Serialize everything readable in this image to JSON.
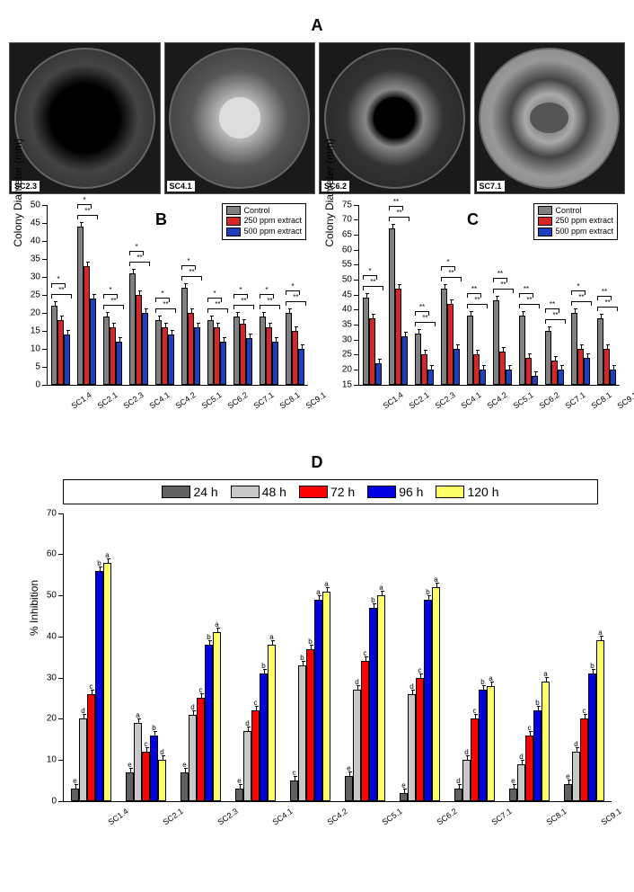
{
  "panelA": {
    "label": "A",
    "dishes": [
      {
        "id": "SC2.3",
        "outer_bg": "radial-gradient(circle, #000 0%, #000 35%, #444 55%, #222 100%)",
        "inner": {
          "w": "48%",
          "h": "48%",
          "bg": "#000"
        }
      },
      {
        "id": "SC4.1",
        "outer_bg": "radial-gradient(circle, #ddd 0%, #bbb 20%, #555 50%, #333 100%)",
        "inner": {
          "w": "30%",
          "h": "30%",
          "bg": "#ddd"
        }
      },
      {
        "id": "SC6.2",
        "outer_bg": "radial-gradient(circle, #000 0%, #000 20%, #888 30%, #333 50%, #222 100%)",
        "inner": {
          "w": "30%",
          "h": "30%",
          "bg": "#000"
        }
      },
      {
        "id": "SC7.1",
        "outer_bg": "radial-gradient(circle, #555 0%, #aaa 25%, #444 40%, #999 60%, #777 100%)",
        "inner": {
          "w": "28%",
          "h": "22%",
          "bg": "#555"
        }
      }
    ]
  },
  "panelB": {
    "label": "B",
    "ylabel": "Colony Diameter (mm)",
    "ylim": [
      0,
      50
    ],
    "ytick_step": 5,
    "legend": [
      {
        "label": "Control",
        "color": "#808080"
      },
      {
        "label": "250 ppm extract",
        "color": "#d62728"
      },
      {
        "label": "500 ppm extract",
        "color": "#1f3fbf"
      }
    ],
    "categories": [
      "SC1.4",
      "SC2.1",
      "SC2.3",
      "SC4.1",
      "SC4.2",
      "SC5.1",
      "SC6.2",
      "SC7.1",
      "SC8.1",
      "SC9.1"
    ],
    "series": [
      [
        22,
        44,
        19,
        31,
        18,
        27,
        18,
        19,
        19,
        20
      ],
      [
        18,
        33,
        16,
        25,
        16,
        20,
        16,
        17,
        16,
        15
      ],
      [
        14,
        24,
        12,
        20,
        14,
        16,
        12,
        13,
        12,
        10
      ]
    ],
    "sig": [
      [
        "**",
        "*"
      ],
      [
        "**",
        "*"
      ],
      [
        "**",
        "*"
      ],
      [
        "**",
        "*"
      ],
      [
        "**",
        "*"
      ],
      [
        "**",
        "*"
      ],
      [
        "**",
        "*"
      ],
      [
        "**",
        "*"
      ],
      [
        "**",
        "*"
      ],
      [
        "**",
        "*"
      ]
    ]
  },
  "panelC": {
    "label": "C",
    "ylabel": "Colony Diameter (mm)",
    "ylim": [
      15,
      75
    ],
    "ytick_step": 5,
    "legend": [
      {
        "label": "Control",
        "color": "#808080"
      },
      {
        "label": "250 ppm extract",
        "color": "#d62728"
      },
      {
        "label": "500 ppm extract",
        "color": "#1f3fbf"
      }
    ],
    "categories": [
      "SC1.4",
      "SC2.1",
      "SC2.3",
      "SC4.1",
      "SC4.2",
      "SC5.1",
      "SC6.2",
      "SC7.1",
      "SC8.1",
      "SC9.1"
    ],
    "series": [
      [
        44,
        67,
        32,
        47,
        38,
        43,
        38,
        33,
        39,
        37
      ],
      [
        37,
        47,
        25,
        42,
        25,
        26,
        24,
        23,
        27,
        27
      ],
      [
        22,
        31,
        20,
        27,
        20,
        20,
        18,
        20,
        24,
        20
      ]
    ],
    "sig": [
      [
        "**",
        "*"
      ],
      [
        "**",
        "**"
      ],
      [
        "**",
        "**"
      ],
      [
        "**",
        "*"
      ],
      [
        "**",
        "**"
      ],
      [
        "**",
        "**"
      ],
      [
        "**",
        "**"
      ],
      [
        "**",
        "**"
      ],
      [
        "**",
        "*"
      ],
      [
        "**",
        "**"
      ]
    ]
  },
  "panelD": {
    "label": "D",
    "ylabel": "% Inhibition",
    "ylim": [
      0,
      70
    ],
    "ytick_step": 10,
    "legend": [
      {
        "label": "24 h",
        "color": "#606060"
      },
      {
        "label": "48 h",
        "color": "#c8c8c8"
      },
      {
        "label": "72 h",
        "color": "#ff0000"
      },
      {
        "label": "96 h",
        "color": "#0000e0"
      },
      {
        "label": "120 h",
        "color": "#ffff66"
      }
    ],
    "categories": [
      "SC1.4",
      "SC2.1",
      "SC2.3",
      "SC4.1",
      "SC4.2",
      "SC5.1",
      "SC6.2",
      "SC7.1",
      "SC8.1",
      "SC9.1"
    ],
    "series": [
      [
        3,
        7,
        7,
        3,
        5,
        6,
        2,
        3,
        3,
        4
      ],
      [
        20,
        19,
        21,
        17,
        33,
        27,
        26,
        10,
        9,
        12
      ],
      [
        26,
        12,
        25,
        22,
        37,
        34,
        30,
        20,
        16,
        20
      ],
      [
        56,
        16,
        38,
        31,
        49,
        47,
        49,
        27,
        22,
        31
      ],
      [
        58,
        10,
        41,
        38,
        51,
        50,
        52,
        28,
        29,
        39
      ]
    ],
    "letters": [
      [
        "e",
        "d",
        "c",
        "b",
        "a"
      ],
      [
        "e",
        "a",
        "c",
        "b",
        "d"
      ],
      [
        "e",
        "d",
        "c",
        "b",
        "a"
      ],
      [
        "e",
        "d",
        "c",
        "b",
        "a"
      ],
      [
        "c",
        "b",
        "b",
        "a",
        "a"
      ],
      [
        "e",
        "d",
        "c",
        "b",
        "a"
      ],
      [
        "e",
        "d",
        "c",
        "b",
        "a"
      ],
      [
        "d",
        "d",
        "c",
        "b",
        "a"
      ],
      [
        "e",
        "d",
        "c",
        "b",
        "a"
      ],
      [
        "e",
        "d",
        "c",
        "b",
        "a"
      ]
    ]
  },
  "colors": {
    "axis": "#000000",
    "background": "#ffffff"
  }
}
